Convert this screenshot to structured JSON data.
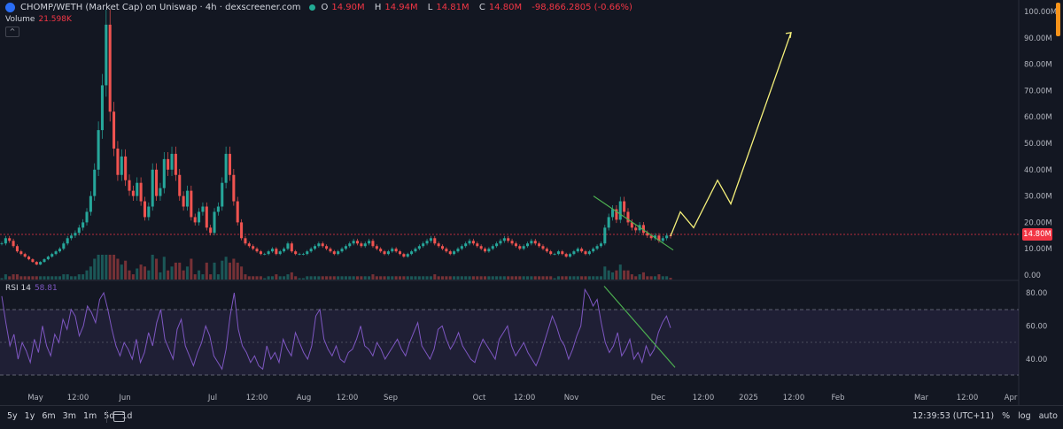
{
  "header": {
    "title": "CHOMP/WETH (Market Cap) on Uniswap · 4h · dexscreener.com",
    "ohlc": [
      {
        "label": "O",
        "value": "14.90M"
      },
      {
        "label": "H",
        "value": "14.94M"
      },
      {
        "label": "L",
        "value": "14.81M"
      },
      {
        "label": "C",
        "value": "14.80M"
      }
    ],
    "change": "-98,866.2805 (-0.66%)"
  },
  "volume": {
    "label": "Volume",
    "value": "21.598K"
  },
  "rsi": {
    "label": "RSI 14",
    "value": "58.81"
  },
  "colors": {
    "background": "#131722",
    "up": "#26a69a",
    "down": "#ef5350",
    "rsi": "#7e57c2",
    "trendline": "#4caf50",
    "projection": "#f5f07a",
    "price_tag": "#f23645"
  },
  "current_price_tag": "14.80M",
  "timeframes": [
    "5y",
    "1y",
    "6m",
    "3m",
    "1m",
    "5d",
    "1d"
  ],
  "bottom_right": {
    "time": "12:39:53 (UTC+11)",
    "percent": "%",
    "log": "log",
    "auto": "auto"
  },
  "chart_data": [
    {
      "type": "line",
      "title": "",
      "x_ticks": [
        "May",
        "12:00",
        "Jun",
        "Jul",
        "12:00",
        "Aug",
        "12:00",
        "Sep",
        "Oct",
        "12:00",
        "Nov",
        "Dec",
        "12:00",
        "2025",
        "12:00",
        "Feb",
        "Mar",
        "12:00",
        "Apr"
      ],
      "y_ticks": [
        "100.00M",
        "90.00M",
        "80.00M",
        "70.00M",
        "60.00M",
        "50.00M",
        "40.00M",
        "30.00M",
        "20.00M",
        "10.00M",
        "0.00"
      ],
      "ylim": [
        0,
        100
      ],
      "y_unit": "M",
      "grid": false,
      "series": [
        {
          "values": [
            12,
            14,
            13,
            11,
            9,
            8,
            7,
            6,
            5,
            4,
            5,
            6,
            7,
            8,
            9,
            10,
            12,
            14,
            15,
            16,
            18,
            20,
            24,
            30,
            40,
            55,
            72,
            95,
            62,
            48,
            38,
            45,
            36,
            32,
            30,
            35,
            28,
            22,
            26,
            40,
            30,
            33,
            44,
            40,
            46,
            38,
            30,
            26,
            32,
            22,
            20,
            24,
            26,
            18,
            16,
            24,
            26,
            35,
            46,
            38,
            28,
            20,
            14,
            12,
            11,
            10,
            9,
            8,
            8,
            9,
            10,
            8,
            9,
            10,
            12,
            9,
            8,
            8,
            8,
            9,
            10,
            11,
            12,
            11,
            10,
            9,
            8,
            9,
            10,
            11,
            12,
            13,
            12,
            11,
            12,
            13,
            11,
            10,
            9,
            8,
            9,
            10,
            9,
            8,
            7,
            8,
            9,
            10,
            11,
            12,
            13,
            14,
            12,
            11,
            10,
            9,
            8,
            9,
            10,
            11,
            12,
            13,
            12,
            11,
            10,
            9,
            10,
            11,
            12,
            13,
            14,
            13,
            12,
            11,
            10,
            11,
            12,
            13,
            12,
            11,
            10,
            9,
            8,
            8,
            9,
            8,
            7,
            8,
            9,
            10,
            9,
            8,
            9,
            10,
            11,
            12,
            18,
            22,
            25,
            21,
            28,
            24,
            20,
            18,
            17,
            19,
            16,
            15,
            14,
            15,
            13,
            14,
            15,
            14.8
          ]
        },
        {
          "name": "trendline",
          "x": [
            0,
            1
          ],
          "values": [
            30,
            9.5
          ]
        },
        {
          "name": "projection",
          "values": [
            14.8,
            24,
            18,
            36,
            27,
            92
          ]
        }
      ]
    },
    {
      "type": "line",
      "title": "",
      "y_ticks": [
        "80.00",
        "60.00",
        "40.00"
      ],
      "ylim": [
        30,
        85
      ],
      "grid": false,
      "series": [
        {
          "values": [
            78,
            62,
            48,
            55,
            40,
            50,
            45,
            38,
            52,
            44,
            60,
            48,
            42,
            55,
            50,
            64,
            58,
            70,
            66,
            54,
            60,
            72,
            68,
            62,
            76,
            80,
            70,
            58,
            48,
            42,
            50,
            46,
            40,
            52,
            38,
            44,
            56,
            48,
            62,
            70,
            52,
            46,
            40,
            58,
            64,
            48,
            42,
            36,
            44,
            50,
            60,
            54,
            42,
            38,
            34,
            46,
            66,
            80,
            58,
            48,
            44,
            38,
            42,
            36,
            34,
            48,
            40,
            44,
            38,
            52,
            46,
            42,
            56,
            50,
            44,
            40,
            48,
            66,
            70,
            52,
            46,
            42,
            48,
            40,
            38,
            44,
            46,
            52,
            60,
            48,
            46,
            42,
            50,
            46,
            40,
            44,
            48,
            52,
            46,
            42,
            50,
            56,
            62,
            48,
            44,
            40,
            46,
            58,
            60,
            52,
            46,
            50,
            56,
            48,
            44,
            40,
            38,
            46,
            52,
            48,
            44,
            40,
            52,
            56,
            60,
            48,
            42,
            46,
            50,
            44,
            40,
            36,
            42,
            50,
            58,
            66,
            60,
            52,
            48,
            40,
            46,
            54,
            60,
            82,
            78,
            72,
            76,
            62,
            50,
            44,
            48,
            56,
            42,
            46,
            52,
            40,
            44,
            38,
            48,
            42,
            46,
            56,
            62,
            66,
            58.81
          ]
        },
        {
          "name": "trendline",
          "x": [
            0,
            1
          ],
          "values": [
            84,
            35
          ]
        }
      ]
    }
  ]
}
